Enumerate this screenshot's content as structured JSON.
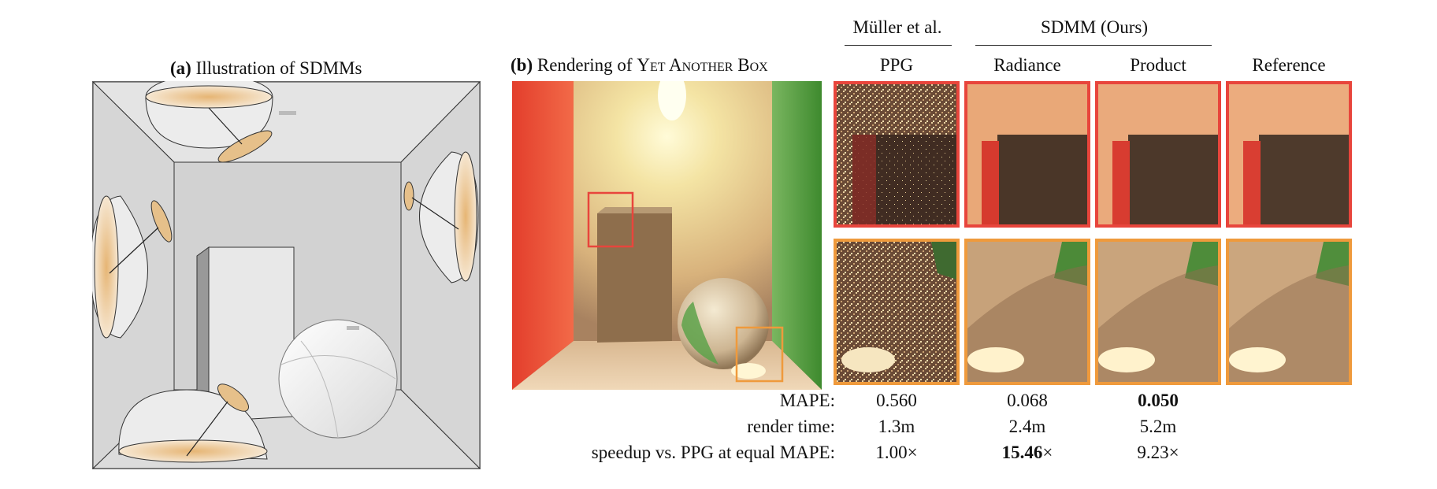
{
  "panel_a": {
    "caption_bold": "(a)",
    "caption_text": "Illustration of SDMMs"
  },
  "panel_b": {
    "caption_bold": "(b)",
    "caption_text_1": "Rendering of",
    "caption_text_sc": "Yet Another Box"
  },
  "group_headers": {
    "muller": "Müller et al.",
    "sdmm": "SDMM (Ours)"
  },
  "columns": [
    "PPG",
    "Radiance",
    "Product",
    "Reference"
  ],
  "metrics": {
    "mape": {
      "label": "MAPE:",
      "values": [
        "0.560",
        "0.068",
        "0.050"
      ]
    },
    "render_time": {
      "label": "render time:",
      "values": [
        "1.3m",
        "2.4m",
        "5.2m"
      ]
    },
    "speedup": {
      "label": "speedup vs. PPG at equal MAPE:",
      "values": [
        "1.00",
        "15.46",
        "9.23"
      ],
      "suffix": "×"
    }
  },
  "colors": {
    "red_inset": "#e8453c",
    "orange_inset": "#ef9a3c",
    "lobe": "#e8c08a"
  }
}
